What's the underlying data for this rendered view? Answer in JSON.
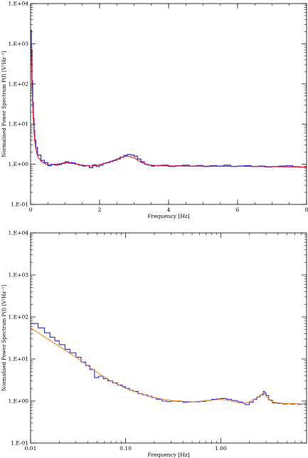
{
  "colors": {
    "series1": "#2b2bd9",
    "series2": "#e8132b",
    "series3": "#f08a1c",
    "axis": "#000000"
  },
  "chart_data": [
    {
      "type": "line",
      "title": "",
      "xlabel": "Frequency [Hz]",
      "ylabel": "Normalised Power Spectrum P(f) [V²Hz⁻¹]",
      "x_scale": "linear",
      "y_scale": "log",
      "xlim": [
        0,
        8
      ],
      "ylim": [
        0.1,
        10000
      ],
      "x_ticks": [
        {
          "value": 0,
          "label": "0"
        },
        {
          "value": 2,
          "label": "2"
        },
        {
          "value": 4,
          "label": "4"
        },
        {
          "value": 6,
          "label": "6"
        },
        {
          "value": 8,
          "label": "8"
        }
      ],
      "y_ticks": [
        {
          "value": 0.1,
          "label": "1.E-01"
        },
        {
          "value": 1,
          "label": "1.E+00"
        },
        {
          "value": 10,
          "label": "1.E+01"
        },
        {
          "value": 100,
          "label": "1.E+02"
        },
        {
          "value": 1000,
          "label": "1.E+03"
        },
        {
          "value": 10000,
          "label": "1.E+04"
        }
      ],
      "series": [
        {
          "color": "#2b2bd9",
          "step": true,
          "x": [
            0.0,
            0.02,
            0.04,
            0.06,
            0.08,
            0.1,
            0.12,
            0.15,
            0.2,
            0.3,
            0.4,
            0.5,
            0.6,
            0.7,
            0.8,
            0.9,
            1.0,
            1.1,
            1.2,
            1.3,
            1.4,
            1.5,
            1.6,
            1.7,
            1.8,
            1.9,
            2.0,
            2.1,
            2.2,
            2.3,
            2.4,
            2.5,
            2.6,
            2.7,
            2.8,
            2.9,
            3.0,
            3.1,
            3.2,
            3.3,
            3.4,
            3.5,
            3.6,
            3.8,
            4.0,
            4.2,
            4.4,
            4.6,
            4.8,
            5.0,
            5.2,
            5.4,
            5.6,
            5.8,
            6.0,
            6.2,
            6.4,
            6.6,
            6.8,
            7.0,
            7.2,
            7.4,
            7.6,
            7.8,
            8.0
          ],
          "y": [
            2200,
            700,
            120,
            35,
            14,
            7,
            4,
            2.6,
            1.7,
            1.25,
            1.1,
            0.92,
            1.0,
            0.95,
            0.98,
            1.05,
            1.15,
            1.1,
            1.08,
            1.0,
            0.95,
            0.9,
            0.93,
            0.82,
            0.97,
            0.88,
            0.95,
            1.05,
            1.1,
            1.18,
            1.25,
            1.35,
            1.5,
            1.65,
            1.75,
            1.7,
            1.6,
            1.35,
            1.15,
            1.0,
            0.95,
            0.9,
            0.93,
            0.95,
            0.88,
            0.92,
            0.95,
            0.9,
            0.93,
            0.88,
            0.92,
            0.9,
            0.95,
            0.88,
            0.9,
            0.92,
            0.88,
            0.9,
            0.86,
            0.88,
            0.9,
            0.92,
            0.87,
            0.85,
            0.84
          ]
        },
        {
          "color": "#e8132b",
          "step": false,
          "x": [
            0.0,
            0.02,
            0.04,
            0.06,
            0.08,
            0.1,
            0.12,
            0.15,
            0.2,
            0.3,
            0.4,
            0.5,
            0.7,
            1.0,
            1.3,
            1.6,
            1.8,
            2.0,
            2.3,
            2.6,
            2.8,
            3.0,
            3.2,
            3.4,
            3.7,
            4.0,
            4.5,
            5.0,
            5.5,
            6.0,
            6.5,
            7.0,
            7.5,
            8.0
          ],
          "y": [
            2000,
            650,
            110,
            32,
            13,
            6.5,
            3.8,
            2.5,
            1.6,
            1.2,
            1.05,
            0.97,
            0.98,
            1.1,
            1.02,
            0.93,
            0.9,
            0.97,
            1.15,
            1.45,
            1.6,
            1.45,
            1.12,
            0.97,
            0.92,
            0.91,
            0.9,
            0.9,
            0.89,
            0.89,
            0.88,
            0.87,
            0.86,
            0.85
          ]
        }
      ]
    },
    {
      "type": "line",
      "title": "",
      "xlabel": "Frequency [Hz]",
      "ylabel": "Normalised Power Spectrum P(f) [V²Hz⁻¹]",
      "x_scale": "log",
      "y_scale": "log",
      "xlim": [
        0.01,
        8
      ],
      "ylim": [
        0.1,
        10000
      ],
      "x_ticks": [
        {
          "value": 0.01,
          "label": "0.01"
        },
        {
          "value": 0.1,
          "label": "0.10"
        },
        {
          "value": 1,
          "label": "1.00"
        }
      ],
      "y_ticks": [
        {
          "value": 0.1,
          "label": "1.E-01"
        },
        {
          "value": 1,
          "label": "1.E+00"
        },
        {
          "value": 10,
          "label": "1.E+01"
        },
        {
          "value": 100,
          "label": "1.E+02"
        },
        {
          "value": 1000,
          "label": "1.E+03"
        },
        {
          "value": 10000,
          "label": "1.E+04"
        }
      ],
      "series": [
        {
          "color": "#2b2bd9",
          "step": true,
          "x": [
            0.01,
            0.012,
            0.014,
            0.016,
            0.018,
            0.02,
            0.023,
            0.026,
            0.03,
            0.034,
            0.038,
            0.042,
            0.047,
            0.052,
            0.058,
            0.065,
            0.073,
            0.082,
            0.092,
            0.1,
            0.11,
            0.12,
            0.135,
            0.15,
            0.17,
            0.19,
            0.21,
            0.24,
            0.27,
            0.3,
            0.35,
            0.4,
            0.45,
            0.5,
            0.6,
            0.7,
            0.8,
            0.9,
            1.0,
            1.15,
            1.3,
            1.5,
            1.7,
            1.8,
            2.0,
            2.2,
            2.4,
            2.6,
            2.8,
            2.9,
            3.0,
            3.2,
            3.5,
            4.0,
            4.5,
            5.0,
            5.5,
            6.0,
            6.5,
            7.0,
            8.0
          ],
          "y": [
            70,
            55,
            42,
            33,
            27,
            22,
            17,
            14,
            11,
            8.5,
            7.0,
            5.6,
            3.6,
            3.9,
            3.4,
            3.0,
            2.7,
            2.4,
            2.2,
            2.0,
            1.8,
            1.7,
            1.5,
            1.4,
            1.3,
            1.2,
            1.1,
            1.0,
            0.97,
            1.0,
            0.98,
            0.93,
            0.95,
            0.96,
            0.98,
            1.03,
            1.1,
            1.12,
            1.15,
            1.1,
            1.03,
            0.95,
            0.88,
            0.82,
            0.93,
            1.1,
            1.25,
            1.4,
            1.7,
            1.55,
            1.35,
            1.05,
            0.9,
            0.88,
            0.85,
            0.87,
            0.84,
            0.86,
            0.83,
            0.85,
            0.84
          ]
        },
        {
          "color": "#f08a1c",
          "step": false,
          "x": [
            0.01,
            0.02,
            0.03,
            0.05,
            0.07,
            0.1,
            0.15,
            0.2,
            0.3,
            0.5,
            0.7,
            1.0,
            1.3,
            1.7,
            2.0,
            2.5,
            2.8,
            3.1,
            3.5,
            4.5,
            6.0,
            8.0
          ],
          "y": [
            55,
            20,
            11,
            4.8,
            3.0,
            2.0,
            1.45,
            1.2,
            1.03,
            0.96,
            1.02,
            1.1,
            1.0,
            0.88,
            0.95,
            1.25,
            1.55,
            1.2,
            0.95,
            0.88,
            0.86,
            0.84
          ]
        }
      ]
    }
  ]
}
